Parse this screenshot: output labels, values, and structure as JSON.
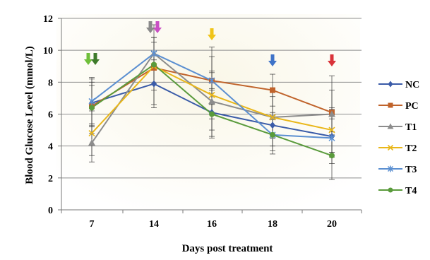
{
  "chart_data": {
    "type": "line",
    "title": "",
    "xlabel": "Days post treatment",
    "ylabel": "Blood Glucose Level (mmol/L)",
    "categories": [
      "7",
      "14",
      "16",
      "18",
      "20"
    ],
    "ylim": [
      0,
      12
    ],
    "yticks": [
      "0",
      "2",
      "4",
      "6",
      "8",
      "10",
      "12"
    ],
    "grid": true,
    "legend_position": "right",
    "series": [
      {
        "name": "NC",
        "color": "#3a5ba8",
        "marker": "diamond",
        "values": [
          6.7,
          7.9,
          6.1,
          5.3,
          4.6
        ],
        "err": [
          1.5,
          1.5,
          1.5,
          0.8,
          1.7
        ]
      },
      {
        "name": "PC",
        "color": "#c0632b",
        "marker": "square",
        "values": [
          6.5,
          8.9,
          8.1,
          7.5,
          6.1
        ],
        "err": [
          1.3,
          1.0,
          1.5,
          1.0,
          1.4
        ]
      },
      {
        "name": "T1",
        "color": "#8c8c8c",
        "marker": "triangle",
        "values": [
          4.2,
          9.8,
          6.8,
          5.8,
          6.0
        ],
        "err": [
          1.2,
          1.0,
          1.8,
          1.8,
          2.4
        ]
      },
      {
        "name": "T2",
        "color": "#e9b71a",
        "marker": "x",
        "values": [
          4.8,
          9.0,
          7.2,
          5.8,
          5.0
        ],
        "err": [
          1.4,
          1.5,
          1.5,
          1.3,
          1.4
        ]
      },
      {
        "name": "T3",
        "color": "#5b8fd1",
        "marker": "star",
        "values": [
          6.8,
          9.8,
          8.1,
          4.7,
          4.5
        ],
        "err": [
          1.5,
          1.0,
          2.1,
          1.0,
          1.2
        ]
      },
      {
        "name": "T4",
        "color": "#5a9b3c",
        "marker": "circle",
        "values": [
          6.4,
          9.1,
          6.0,
          4.7,
          3.4
        ],
        "err": [
          1.6,
          2.5,
          1.5,
          1.2,
          1.5
        ]
      }
    ],
    "annotations": [
      {
        "category": "7",
        "arrows": [
          {
            "color": "#6fbf3a"
          },
          {
            "color": "#3d7a2a"
          }
        ]
      },
      {
        "category": "14",
        "arrows": [
          {
            "color": "#8a8a8a"
          },
          {
            "color": "#c94fc4"
          }
        ]
      },
      {
        "category": "16",
        "arrows": [
          {
            "color": "#f0c419"
          }
        ]
      },
      {
        "category": "18",
        "arrows": [
          {
            "color": "#3f73c8"
          }
        ]
      },
      {
        "category": "20",
        "arrows": [
          {
            "color": "#d9333a"
          }
        ]
      }
    ]
  }
}
